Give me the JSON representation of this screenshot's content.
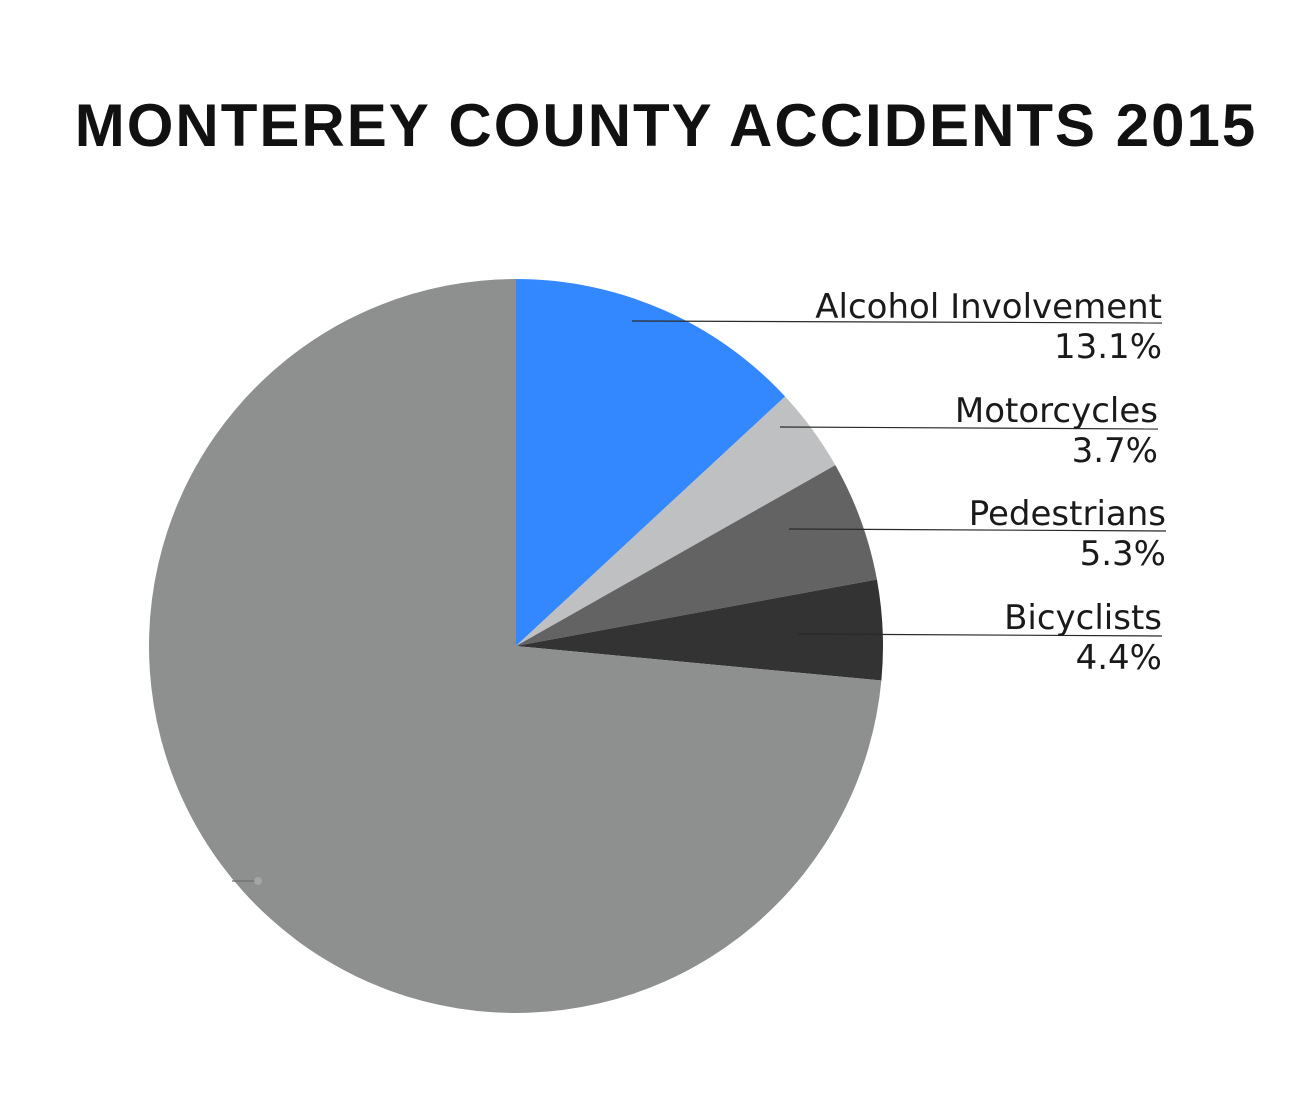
{
  "chart_data": {
    "type": "pie",
    "title": "MONTEREY COUNTY ACCIDENTS 2015",
    "slices": [
      {
        "label": "Alcohol Involvement",
        "value": 13.1,
        "value_label": "13.1%",
        "color": "#3388ff"
      },
      {
        "label": "Motorcycles",
        "value": 3.7,
        "value_label": "3.7%",
        "color": "#bfc0c2"
      },
      {
        "label": "Pedestrians",
        "value": 5.3,
        "value_label": "5.3%",
        "color": "#636363"
      },
      {
        "label": "Bicyclists",
        "value": 4.4,
        "value_label": "4.4%",
        "color": "#333333"
      },
      {
        "label": "",
        "value": 73.5,
        "value_label": "",
        "color": "#8e8f8f"
      }
    ],
    "start_angle": "12 o'clock",
    "direction": "clockwise",
    "legend": "none"
  }
}
